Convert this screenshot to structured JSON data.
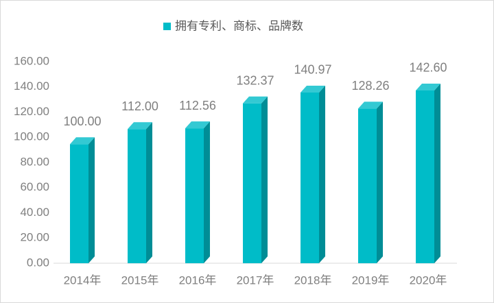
{
  "chart_data": {
    "type": "bar3d",
    "categories": [
      "2014年",
      "2015年",
      "2016年",
      "2017年",
      "2018年",
      "2019年",
      "2020年"
    ],
    "series": [
      {
        "name": "拥有专利、商标、品牌数",
        "color": "#00bcc8",
        "values": [
          100.0,
          112.0,
          112.56,
          132.37,
          140.97,
          128.26,
          142.6
        ],
        "value_labels": [
          "100.00",
          "112.00",
          "112.56",
          "132.37",
          "140.97",
          "128.26",
          "142.60"
        ]
      }
    ],
    "ylim": [
      0,
      160
    ],
    "yticks": [
      {
        "value": 0,
        "label": "0.00"
      },
      {
        "value": 20,
        "label": "20.00"
      },
      {
        "value": 40,
        "label": "40.00"
      },
      {
        "value": 60,
        "label": "60.00"
      },
      {
        "value": 80,
        "label": "80.00"
      },
      {
        "value": 100,
        "label": "100.00"
      },
      {
        "value": 120,
        "label": "120.00"
      },
      {
        "value": 140,
        "label": "140.00"
      },
      {
        "value": 160,
        "label": "160.00"
      }
    ],
    "legend": "top",
    "grid": false
  }
}
